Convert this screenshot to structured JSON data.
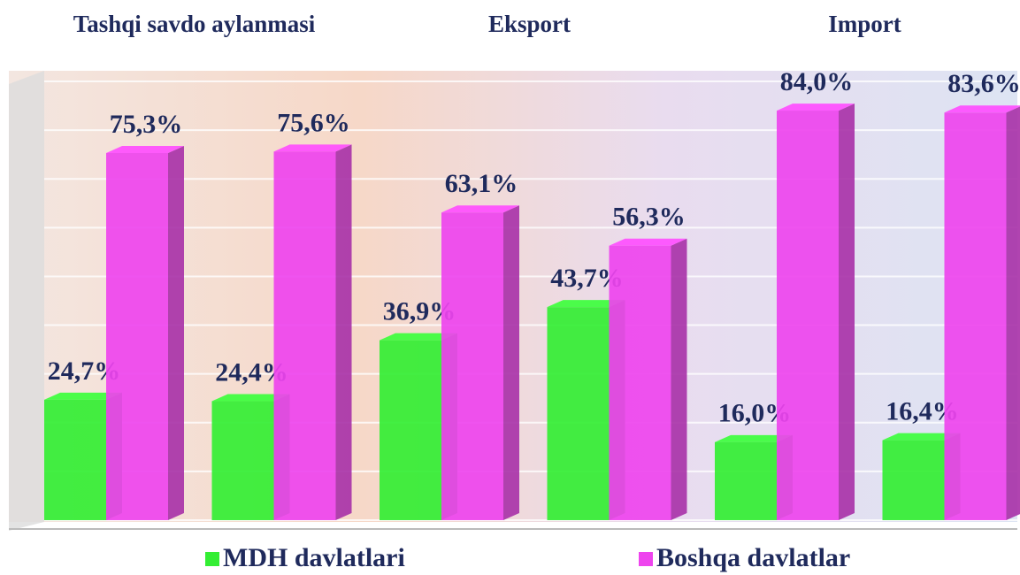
{
  "chart_data": {
    "type": "bar3d",
    "group_labels": [
      "Tashqi savdo aylanmasi",
      "Eksport",
      "Import"
    ],
    "categories": [
      null,
      null,
      null,
      null,
      null,
      null
    ],
    "series": [
      {
        "name": "MDH davlatlari",
        "color": "#33ee33",
        "values": [
          24.7,
          24.4,
          36.9,
          43.7,
          16.0,
          16.4
        ],
        "value_labels": [
          "24,7%",
          "24,4%",
          "36,9%",
          "43,7%",
          "16,0%",
          "16,4%"
        ]
      },
      {
        "name": "Boshqa davlatlar",
        "color": "#ee44ee",
        "values": [
          75.3,
          75.6,
          63.1,
          56.3,
          84.0,
          83.6
        ],
        "value_labels": [
          "75,3%",
          "75,6%",
          "63,1%",
          "56,3%",
          "84,0%",
          "83,6%"
        ]
      }
    ],
    "ylim": [
      0,
      90
    ],
    "yticks": [
      0,
      10,
      20,
      30,
      40,
      50,
      60,
      70,
      80,
      90
    ],
    "grid": true
  }
}
